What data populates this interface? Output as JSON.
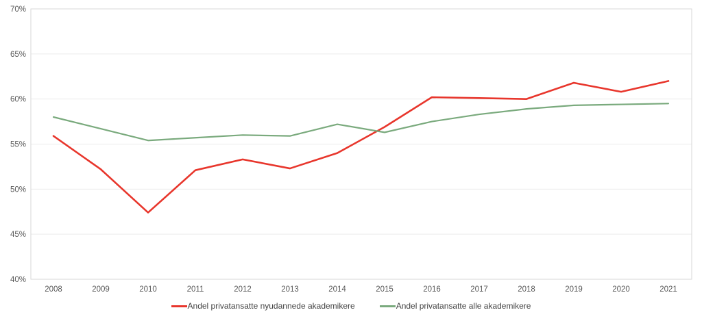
{
  "chart_data": {
    "type": "line",
    "title": "",
    "xlabel": "",
    "ylabel": "",
    "x": [
      2008,
      2009,
      2010,
      2011,
      2012,
      2013,
      2014,
      2015,
      2016,
      2017,
      2018,
      2019,
      2020,
      2021
    ],
    "series": [
      {
        "name": "Andel privatansatte nyudannede akademikere",
        "color": "#e8362c",
        "values": [
          55.9,
          52.2,
          47.4,
          52.1,
          53.3,
          52.3,
          54.0,
          56.9,
          60.2,
          60.1,
          60.0,
          61.8,
          60.8,
          62.0
        ]
      },
      {
        "name": "Andel privatansatte alle akademikere",
        "color": "#7aaa7d",
        "values": [
          58.0,
          56.7,
          55.4,
          55.7,
          56.0,
          55.9,
          57.2,
          56.3,
          57.5,
          58.3,
          58.9,
          59.3,
          59.4,
          59.5
        ]
      }
    ],
    "ylim": [
      40,
      70
    ],
    "ytick_step": 5,
    "ytick_labels": [
      "40%",
      "45%",
      "50%",
      "55%",
      "60%",
      "65%",
      "70%"
    ],
    "ytick_format": "percent",
    "grid": "horizontal",
    "legend_position": "bottom-center"
  },
  "style": {
    "grid_color": "#ebebeb",
    "border_color": "#d7d7d7",
    "tick_text_color": "#595959",
    "legend_text_color": "#444444",
    "background": "#ffffff"
  }
}
